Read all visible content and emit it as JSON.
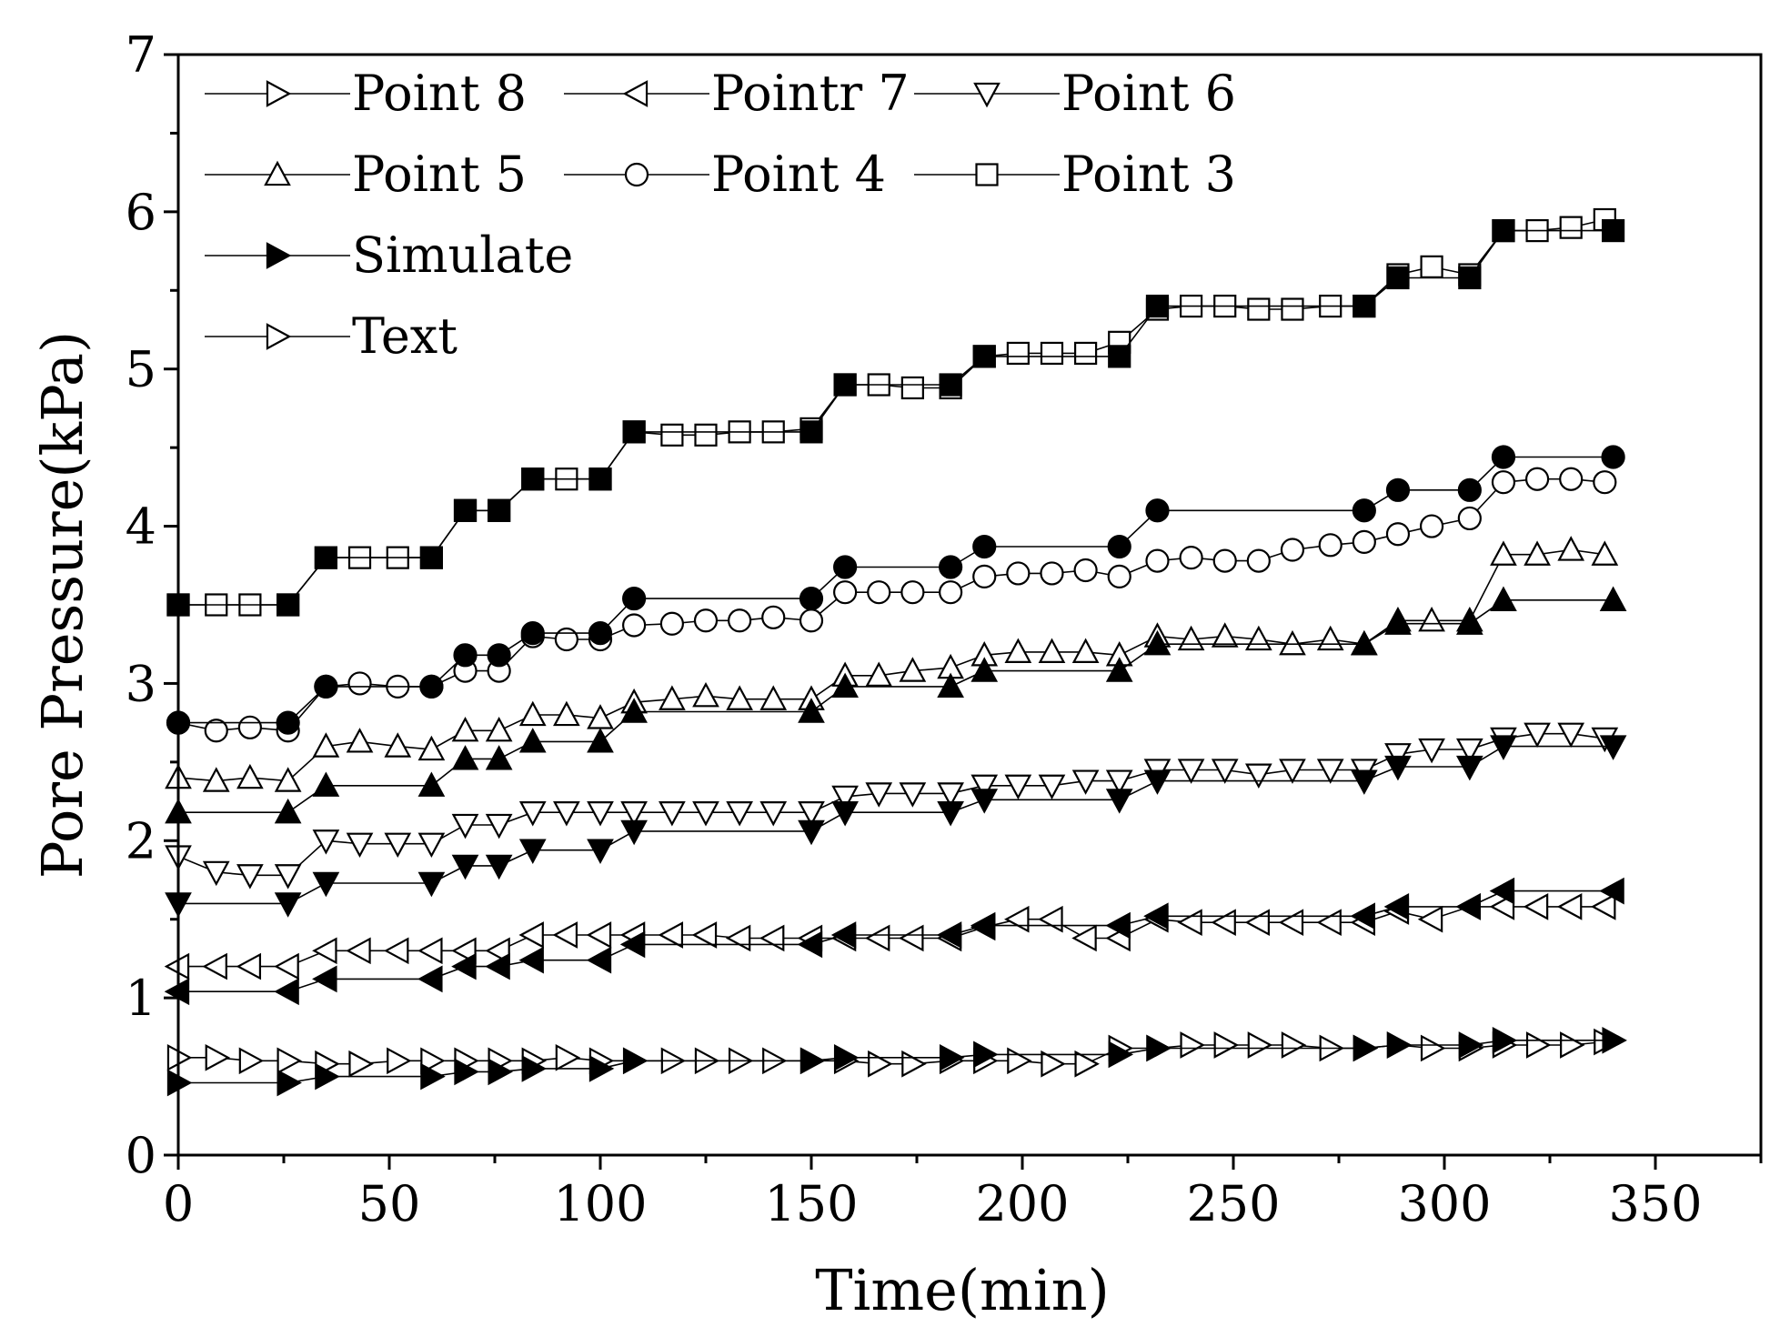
{
  "chart_data": {
    "type": "line",
    "title": "",
    "xlabel": "Time(min)",
    "ylabel": "Pore Pressure(kPa)",
    "xlim": [
      0,
      375
    ],
    "ylim": [
      0,
      7
    ],
    "xticks": [
      0,
      50,
      100,
      150,
      200,
      250,
      300,
      350
    ],
    "yticks": [
      0,
      1,
      2,
      3,
      4,
      5,
      6,
      7
    ],
    "xtick_labels": [
      "0",
      "50",
      "100",
      "150",
      "200",
      "250",
      "300",
      "350"
    ],
    "ytick_labels": [
      "0",
      "1",
      "2",
      "3",
      "4",
      "5",
      "6",
      "7"
    ],
    "legend_position": "top-left",
    "legend": [
      {
        "label": "Point 8",
        "marker": "triangle-right",
        "filled": false
      },
      {
        "label": "Pointr 7",
        "marker": "triangle-left",
        "filled": false
      },
      {
        "label": "Point 6",
        "marker": "triangle-down",
        "filled": false
      },
      {
        "label": "Point 5",
        "marker": "triangle-up",
        "filled": false
      },
      {
        "label": "Point 4",
        "marker": "circle",
        "filled": false
      },
      {
        "label": "Point 3",
        "marker": "square",
        "filled": false
      },
      {
        "label": "Simulate",
        "marker": "triangle-right",
        "filled": true
      },
      {
        "label": "Text",
        "marker": "triangle-right",
        "filled": false
      }
    ],
    "series": [
      {
        "name": "Point 3 (test)",
        "marker": "square",
        "filled": false,
        "x": [
          0,
          9,
          17,
          26,
          35,
          43,
          52,
          60,
          68,
          76,
          84,
          92,
          100,
          108,
          117,
          125,
          133,
          141,
          150,
          158,
          166,
          174,
          183,
          191,
          199,
          207,
          215,
          223,
          232,
          240,
          248,
          256,
          264,
          273,
          281,
          289,
          297,
          306,
          314,
          322,
          330,
          338
        ],
        "y": [
          3.5,
          3.5,
          3.5,
          3.5,
          3.8,
          3.8,
          3.8,
          3.8,
          4.1,
          4.1,
          4.3,
          4.3,
          4.3,
          4.6,
          4.58,
          4.58,
          4.6,
          4.6,
          4.62,
          4.9,
          4.9,
          4.88,
          4.88,
          5.08,
          5.1,
          5.1,
          5.1,
          5.17,
          5.38,
          5.4,
          5.4,
          5.38,
          5.38,
          5.4,
          5.4,
          5.6,
          5.65,
          5.6,
          5.88,
          5.88,
          5.9,
          5.95
        ]
      },
      {
        "name": "Point 3 (simulate)",
        "marker": "square",
        "filled": true,
        "x": [
          0,
          26,
          35,
          60,
          68,
          76,
          84,
          100,
          108,
          150,
          158,
          183,
          191,
          223,
          232,
          281,
          289,
          306,
          314,
          340
        ],
        "y": [
          3.5,
          3.5,
          3.8,
          3.8,
          4.1,
          4.1,
          4.3,
          4.3,
          4.6,
          4.6,
          4.9,
          4.9,
          5.08,
          5.08,
          5.4,
          5.4,
          5.58,
          5.58,
          5.88,
          5.88
        ]
      },
      {
        "name": "Point 4 (test)",
        "marker": "circle",
        "filled": false,
        "x": [
          0,
          9,
          17,
          26,
          35,
          43,
          52,
          60,
          68,
          76,
          84,
          92,
          100,
          108,
          117,
          125,
          133,
          141,
          150,
          158,
          166,
          174,
          183,
          191,
          199,
          207,
          215,
          223,
          232,
          240,
          248,
          256,
          264,
          273,
          281,
          289,
          297,
          306,
          314,
          322,
          330,
          338
        ],
        "y": [
          2.75,
          2.7,
          2.72,
          2.7,
          2.98,
          3.0,
          2.98,
          2.98,
          3.08,
          3.08,
          3.3,
          3.28,
          3.28,
          3.37,
          3.38,
          3.4,
          3.4,
          3.42,
          3.4,
          3.58,
          3.58,
          3.58,
          3.58,
          3.68,
          3.7,
          3.7,
          3.72,
          3.68,
          3.78,
          3.8,
          3.78,
          3.78,
          3.85,
          3.88,
          3.9,
          3.95,
          4.0,
          4.05,
          4.28,
          4.3,
          4.3,
          4.28
        ]
      },
      {
        "name": "Point 4 (simulate)",
        "marker": "circle",
        "filled": true,
        "x": [
          0,
          26,
          35,
          60,
          68,
          76,
          84,
          100,
          108,
          150,
          158,
          183,
          191,
          223,
          232,
          281,
          289,
          306,
          314,
          340
        ],
        "y": [
          2.75,
          2.75,
          2.98,
          2.98,
          3.18,
          3.18,
          3.32,
          3.32,
          3.54,
          3.54,
          3.74,
          3.74,
          3.87,
          3.87,
          4.1,
          4.1,
          4.23,
          4.23,
          4.44,
          4.44
        ]
      },
      {
        "name": "Point 5 (test)",
        "marker": "triangle-up",
        "filled": false,
        "x": [
          0,
          9,
          17,
          26,
          35,
          43,
          52,
          60,
          68,
          76,
          84,
          92,
          100,
          108,
          117,
          125,
          133,
          141,
          150,
          158,
          166,
          174,
          183,
          191,
          199,
          207,
          215,
          223,
          232,
          240,
          248,
          256,
          264,
          273,
          281,
          289,
          297,
          306,
          314,
          322,
          330,
          338
        ],
        "y": [
          2.4,
          2.38,
          2.4,
          2.38,
          2.6,
          2.63,
          2.6,
          2.58,
          2.7,
          2.7,
          2.8,
          2.8,
          2.78,
          2.88,
          2.9,
          2.92,
          2.9,
          2.9,
          2.9,
          3.05,
          3.05,
          3.08,
          3.1,
          3.18,
          3.2,
          3.2,
          3.2,
          3.18,
          3.3,
          3.28,
          3.3,
          3.28,
          3.25,
          3.28,
          3.25,
          3.4,
          3.4,
          3.4,
          3.82,
          3.82,
          3.85,
          3.82
        ]
      },
      {
        "name": "Point 5 (simulate)",
        "marker": "triangle-up",
        "filled": true,
        "x": [
          0,
          26,
          35,
          60,
          68,
          76,
          84,
          100,
          108,
          150,
          158,
          183,
          191,
          223,
          232,
          281,
          289,
          306,
          314,
          340
        ],
        "y": [
          2.18,
          2.18,
          2.35,
          2.35,
          2.52,
          2.52,
          2.63,
          2.63,
          2.82,
          2.82,
          2.98,
          2.98,
          3.08,
          3.08,
          3.25,
          3.25,
          3.38,
          3.38,
          3.53,
          3.53
        ]
      },
      {
        "name": "Point 6 (test)",
        "marker": "triangle-down",
        "filled": false,
        "x": [
          0,
          9,
          17,
          26,
          35,
          43,
          52,
          60,
          68,
          76,
          84,
          92,
          100,
          108,
          117,
          125,
          133,
          141,
          150,
          158,
          166,
          174,
          183,
          191,
          199,
          207,
          215,
          223,
          232,
          240,
          248,
          256,
          264,
          273,
          281,
          289,
          297,
          306,
          314,
          322,
          330,
          338
        ],
        "y": [
          1.9,
          1.8,
          1.78,
          1.78,
          2.0,
          1.98,
          1.98,
          1.98,
          2.1,
          2.1,
          2.18,
          2.18,
          2.18,
          2.18,
          2.18,
          2.18,
          2.18,
          2.18,
          2.18,
          2.28,
          2.3,
          2.3,
          2.3,
          2.35,
          2.35,
          2.35,
          2.38,
          2.38,
          2.45,
          2.45,
          2.45,
          2.42,
          2.45,
          2.45,
          2.45,
          2.55,
          2.58,
          2.58,
          2.65,
          2.68,
          2.68,
          2.65
        ]
      },
      {
        "name": "Point 6 (simulate)",
        "marker": "triangle-down",
        "filled": true,
        "x": [
          0,
          26,
          35,
          60,
          68,
          76,
          84,
          100,
          108,
          150,
          158,
          183,
          191,
          223,
          232,
          281,
          289,
          306,
          314,
          340
        ],
        "y": [
          1.6,
          1.6,
          1.73,
          1.73,
          1.84,
          1.84,
          1.94,
          1.94,
          2.06,
          2.06,
          2.18,
          2.18,
          2.26,
          2.26,
          2.38,
          2.38,
          2.47,
          2.47,
          2.6,
          2.6
        ]
      },
      {
        "name": "Pointr 7 (test)",
        "marker": "triangle-left",
        "filled": false,
        "x": [
          0,
          9,
          17,
          26,
          35,
          43,
          52,
          60,
          68,
          76,
          84,
          92,
          100,
          108,
          117,
          125,
          133,
          141,
          150,
          158,
          166,
          174,
          183,
          191,
          199,
          207,
          215,
          223,
          232,
          240,
          248,
          256,
          264,
          273,
          281,
          289,
          297,
          306,
          314,
          322,
          330,
          338
        ],
        "y": [
          1.2,
          1.2,
          1.2,
          1.2,
          1.3,
          1.3,
          1.3,
          1.3,
          1.3,
          1.3,
          1.4,
          1.4,
          1.4,
          1.4,
          1.4,
          1.4,
          1.38,
          1.38,
          1.38,
          1.38,
          1.38,
          1.38,
          1.38,
          1.45,
          1.5,
          1.5,
          1.38,
          1.38,
          1.5,
          1.48,
          1.48,
          1.48,
          1.48,
          1.48,
          1.48,
          1.55,
          1.5,
          1.58,
          1.58,
          1.58,
          1.58,
          1.58
        ]
      },
      {
        "name": "Pointr 7 (simulate)",
        "marker": "triangle-left",
        "filled": true,
        "x": [
          0,
          26,
          35,
          60,
          68,
          76,
          84,
          100,
          108,
          150,
          158,
          183,
          191,
          223,
          232,
          281,
          289,
          306,
          314,
          340
        ],
        "y": [
          1.04,
          1.04,
          1.12,
          1.12,
          1.2,
          1.2,
          1.24,
          1.24,
          1.34,
          1.34,
          1.4,
          1.4,
          1.46,
          1.46,
          1.52,
          1.52,
          1.58,
          1.58,
          1.68,
          1.68
        ]
      },
      {
        "name": "Point 8 (test)",
        "marker": "triangle-right",
        "filled": false,
        "x": [
          0,
          9,
          17,
          26,
          35,
          43,
          52,
          60,
          68,
          76,
          84,
          92,
          100,
          108,
          117,
          125,
          133,
          141,
          150,
          158,
          166,
          174,
          183,
          191,
          199,
          207,
          215,
          223,
          232,
          240,
          248,
          256,
          264,
          273,
          281,
          289,
          297,
          306,
          314,
          322,
          330,
          338
        ],
        "y": [
          0.62,
          0.62,
          0.6,
          0.6,
          0.58,
          0.58,
          0.6,
          0.6,
          0.6,
          0.6,
          0.6,
          0.62,
          0.6,
          0.6,
          0.6,
          0.6,
          0.6,
          0.6,
          0.6,
          0.6,
          0.58,
          0.58,
          0.6,
          0.6,
          0.6,
          0.58,
          0.58,
          0.68,
          0.68,
          0.7,
          0.7,
          0.7,
          0.7,
          0.68,
          0.68,
          0.7,
          0.68,
          0.68,
          0.7,
          0.7,
          0.7,
          0.72
        ]
      },
      {
        "name": "Point 8 (simulate)",
        "marker": "triangle-right",
        "filled": true,
        "x": [
          0,
          26,
          35,
          60,
          68,
          76,
          84,
          100,
          108,
          150,
          158,
          183,
          191,
          223,
          232,
          281,
          289,
          306,
          314,
          340
        ],
        "y": [
          0.46,
          0.46,
          0.5,
          0.5,
          0.53,
          0.53,
          0.55,
          0.55,
          0.6,
          0.6,
          0.62,
          0.62,
          0.64,
          0.64,
          0.68,
          0.68,
          0.7,
          0.7,
          0.73,
          0.73
        ]
      }
    ]
  }
}
